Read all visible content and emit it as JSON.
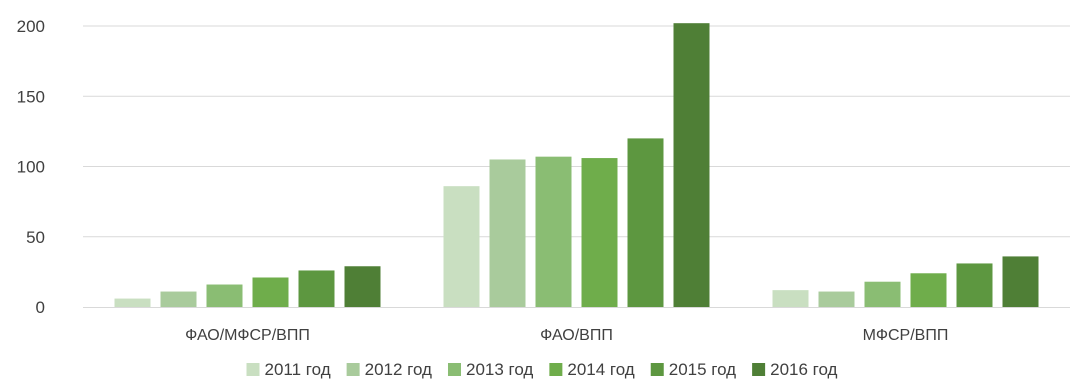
{
  "chart_data": {
    "type": "bar",
    "title": "",
    "xlabel": "",
    "ylabel": "",
    "ylim": [
      0,
      200
    ],
    "yticks": [
      0,
      50,
      100,
      150,
      200
    ],
    "grid": true,
    "legend_position": "bottom",
    "categories": [
      "ФАО/МФСР/ВПП",
      "ФАО/ВПП",
      "МФСР/ВПП"
    ],
    "series": [
      {
        "name": "2011 год",
        "color": "#c9dfc1",
        "values": [
          6,
          86,
          12
        ]
      },
      {
        "name": "2012 год",
        "color": "#a9cb9c",
        "values": [
          11,
          105,
          11
        ]
      },
      {
        "name": "2013 год",
        "color": "#8abd73",
        "values": [
          16,
          107,
          18
        ]
      },
      {
        "name": "2014 год",
        "color": "#6fad4b",
        "values": [
          21,
          106,
          24
        ]
      },
      {
        "name": "2015 год",
        "color": "#5d9740",
        "values": [
          26,
          120,
          31
        ]
      },
      {
        "name": "2016 год",
        "color": "#4f7f36",
        "values": [
          29,
          202,
          36
        ]
      }
    ]
  }
}
